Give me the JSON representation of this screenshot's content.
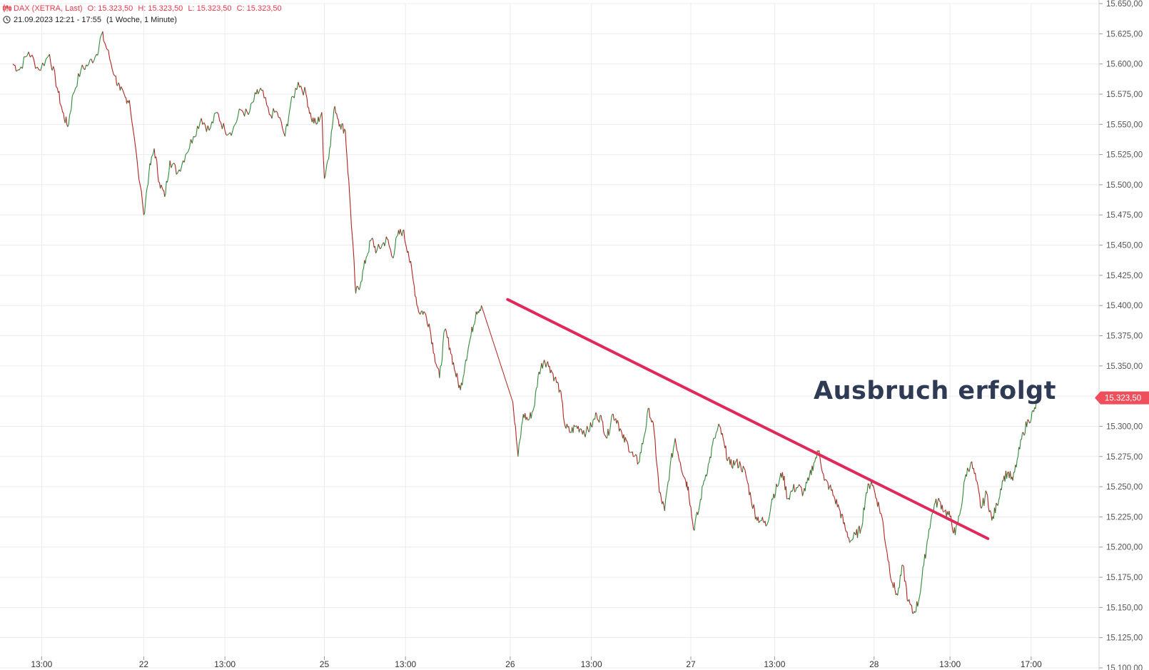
{
  "header": {
    "instrument": "DAX (XETRA, Last)",
    "ohlc": {
      "o": "O: 15.323,50",
      "h": "H: 15.323,50",
      "l": "L: 15.323,50",
      "c": "C: 15.323,50"
    },
    "range": "21.09.2023 12:21 - 17:55",
    "period": "(1 Woche, 1 Minute)",
    "icon": "candlestick-icon",
    "clock_icon": "clock-icon"
  },
  "annotation": {
    "text": "Ausbruch erfolgt"
  },
  "colors": {
    "up": "#2e8b3a",
    "down": "#b22222",
    "trendline": "#e0285a",
    "last_price": "#ef4f5a",
    "grid": "#ececec",
    "annotation": "#2f3b55"
  },
  "chart_data": {
    "type": "line",
    "title": "",
    "ylim": [
      15100,
      15650
    ],
    "yticks": [
      {
        "v": 15650,
        "label": "15.650,00"
      },
      {
        "v": 15625,
        "label": "15.625,00"
      },
      {
        "v": 15600,
        "label": "15.600,00"
      },
      {
        "v": 15575,
        "label": "15.575,00"
      },
      {
        "v": 15550,
        "label": "15.550,00"
      },
      {
        "v": 15525,
        "label": "15.525,00"
      },
      {
        "v": 15500,
        "label": "15.500,00"
      },
      {
        "v": 15475,
        "label": "15.475,00"
      },
      {
        "v": 15450,
        "label": "15.450,00"
      },
      {
        "v": 15425,
        "label": "15.425,00"
      },
      {
        "v": 15400,
        "label": "15.400,00"
      },
      {
        "v": 15375,
        "label": "15.375,00"
      },
      {
        "v": 15350,
        "label": "15.350,00"
      },
      {
        "v": 15325,
        "label": "15.325,00"
      },
      {
        "v": 15300,
        "label": "15.300,00"
      },
      {
        "v": 15275,
        "label": "15.275,00"
      },
      {
        "v": 15250,
        "label": "15.250,00"
      },
      {
        "v": 15225,
        "label": "15.225,00"
      },
      {
        "v": 15200,
        "label": "15.200,00"
      },
      {
        "v": 15175,
        "label": "15.175,00"
      },
      {
        "v": 15150,
        "label": "15.150,00"
      },
      {
        "v": 15125,
        "label": "15.125,00"
      },
      {
        "v": 15100,
        "label": "15.100,00"
      }
    ],
    "xticks": [
      {
        "t": 0.22,
        "label": "13:00"
      },
      {
        "t": 1.0,
        "label": "22"
      },
      {
        "t": 1.62,
        "label": "13:00"
      },
      {
        "t": 2.38,
        "label": "25"
      },
      {
        "t": 3.0,
        "label": "13:00"
      },
      {
        "t": 3.8,
        "label": "26"
      },
      {
        "t": 4.42,
        "label": "13:00"
      },
      {
        "t": 5.18,
        "label": "27"
      },
      {
        "t": 5.82,
        "label": "13:00"
      },
      {
        "t": 6.58,
        "label": "28"
      },
      {
        "t": 7.16,
        "label": "13:00"
      },
      {
        "t": 7.78,
        "label": "17:00"
      }
    ],
    "series": [
      {
        "points": [
          [
            0.0,
            15600
          ],
          [
            0.05,
            15595
          ],
          [
            0.12,
            15610
          ],
          [
            0.2,
            15595
          ],
          [
            0.28,
            15608
          ],
          [
            0.34,
            15580
          ],
          [
            0.38,
            15560
          ],
          [
            0.42,
            15548
          ],
          [
            0.46,
            15575
          ],
          [
            0.52,
            15595
          ],
          [
            0.58,
            15600
          ],
          [
            0.64,
            15608
          ],
          [
            0.68,
            15625
          ],
          [
            0.72,
            15612
          ],
          [
            0.78,
            15590
          ],
          [
            0.82,
            15578
          ],
          [
            0.86,
            15572
          ],
          [
            0.89,
            15570
          ],
          [
            1.0,
            15475
          ],
          [
            1.04,
            15510
          ],
          [
            1.08,
            15530
          ],
          [
            1.12,
            15502
          ],
          [
            1.16,
            15490
          ],
          [
            1.2,
            15520
          ],
          [
            1.26,
            15510
          ],
          [
            1.32,
            15525
          ],
          [
            1.38,
            15540
          ],
          [
            1.44,
            15555
          ],
          [
            1.5,
            15545
          ],
          [
            1.56,
            15560
          ],
          [
            1.62,
            15545
          ],
          [
            1.68,
            15545
          ],
          [
            1.74,
            15562
          ],
          [
            1.8,
            15558
          ],
          [
            1.86,
            15575
          ],
          [
            1.9,
            15578
          ],
          [
            1.96,
            15558
          ],
          [
            2.02,
            15560
          ],
          [
            2.08,
            15540
          ],
          [
            2.12,
            15565
          ],
          [
            2.18,
            15585
          ],
          [
            2.24,
            15575
          ],
          [
            2.28,
            15555
          ],
          [
            2.32,
            15550
          ],
          [
            2.36,
            15560
          ],
          [
            2.38,
            15505
          ],
          [
            2.42,
            15530
          ],
          [
            2.46,
            15565
          ],
          [
            2.5,
            15550
          ],
          [
            2.54,
            15545
          ],
          [
            2.58,
            15480
          ],
          [
            2.62,
            15410
          ],
          [
            2.66,
            15420
          ],
          [
            2.7,
            15440
          ],
          [
            2.74,
            15455
          ],
          [
            2.78,
            15445
          ],
          [
            2.82,
            15450
          ],
          [
            2.86,
            15455
          ],
          [
            2.9,
            15440
          ],
          [
            2.94,
            15458
          ],
          [
            2.98,
            15462
          ],
          [
            3.02,
            15445
          ],
          [
            3.06,
            15420
          ],
          [
            3.1,
            15395
          ],
          [
            3.14,
            15395
          ],
          [
            3.18,
            15385
          ],
          [
            3.22,
            15360
          ],
          [
            3.26,
            15340
          ],
          [
            3.3,
            15380
          ],
          [
            3.34,
            15365
          ],
          [
            3.38,
            15345
          ],
          [
            3.42,
            15330
          ],
          [
            3.46,
            15355
          ],
          [
            3.5,
            15375
          ],
          [
            3.54,
            15395
          ],
          [
            3.58,
            15400
          ],
          [
            3.82,
            15320
          ],
          [
            3.86,
            15275
          ],
          [
            3.9,
            15310
          ],
          [
            3.94,
            15305
          ],
          [
            3.98,
            15315
          ],
          [
            4.02,
            15345
          ],
          [
            4.06,
            15355
          ],
          [
            4.1,
            15350
          ],
          [
            4.14,
            15340
          ],
          [
            4.18,
            15330
          ],
          [
            4.22,
            15300
          ],
          [
            4.26,
            15295
          ],
          [
            4.3,
            15300
          ],
          [
            4.34,
            15298
          ],
          [
            4.38,
            15295
          ],
          [
            4.42,
            15300
          ],
          [
            4.46,
            15310
          ],
          [
            4.5,
            15305
          ],
          [
            4.54,
            15290
          ],
          [
            4.58,
            15310
          ],
          [
            4.62,
            15305
          ],
          [
            4.66,
            15290
          ],
          [
            4.7,
            15285
          ],
          [
            4.74,
            15275
          ],
          [
            4.78,
            15270
          ],
          [
            4.82,
            15290
          ],
          [
            4.86,
            15315
          ],
          [
            4.9,
            15295
          ],
          [
            4.94,
            15245
          ],
          [
            4.98,
            15230
          ],
          [
            5.02,
            15265
          ],
          [
            5.06,
            15290
          ],
          [
            5.1,
            15270
          ],
          [
            5.14,
            15255
          ],
          [
            5.16,
            15250
          ],
          [
            5.2,
            15215
          ],
          [
            5.24,
            15230
          ],
          [
            5.28,
            15255
          ],
          [
            5.32,
            15270
          ],
          [
            5.36,
            15290
          ],
          [
            5.4,
            15300
          ],
          [
            5.44,
            15282
          ],
          [
            5.48,
            15268
          ],
          [
            5.52,
            15270
          ],
          [
            5.56,
            15268
          ],
          [
            5.6,
            15260
          ],
          [
            5.64,
            15240
          ],
          [
            5.68,
            15225
          ],
          [
            5.72,
            15222
          ],
          [
            5.76,
            15218
          ],
          [
            5.8,
            15240
          ],
          [
            5.84,
            15250
          ],
          [
            5.88,
            15262
          ],
          [
            5.92,
            15240
          ],
          [
            5.96,
            15248
          ],
          [
            6.0,
            15250
          ],
          [
            6.04,
            15245
          ],
          [
            6.08,
            15255
          ],
          [
            6.12,
            15270
          ],
          [
            6.16,
            15280
          ],
          [
            6.2,
            15255
          ],
          [
            6.24,
            15250
          ],
          [
            6.28,
            15240
          ],
          [
            6.32,
            15230
          ],
          [
            6.36,
            15215
          ],
          [
            6.4,
            15205
          ],
          [
            6.44,
            15210
          ],
          [
            6.48,
            15215
          ],
          [
            6.52,
            15245
          ],
          [
            6.56,
            15255
          ],
          [
            6.6,
            15240
          ],
          [
            6.64,
            15225
          ],
          [
            6.68,
            15195
          ],
          [
            6.72,
            15170
          ],
          [
            6.76,
            15160
          ],
          [
            6.8,
            15185
          ],
          [
            6.84,
            15155
          ],
          [
            6.88,
            15145
          ],
          [
            6.92,
            15155
          ],
          [
            6.96,
            15185
          ],
          [
            7.0,
            15215
          ],
          [
            7.04,
            15235
          ],
          [
            7.08,
            15238
          ],
          [
            7.12,
            15230
          ],
          [
            7.16,
            15225
          ],
          [
            7.2,
            15210
          ],
          [
            7.24,
            15230
          ],
          [
            7.28,
            15260
          ],
          [
            7.32,
            15270
          ],
          [
            7.36,
            15255
          ],
          [
            7.4,
            15232
          ],
          [
            7.44,
            15245
          ],
          [
            7.48,
            15222
          ],
          [
            7.52,
            15235
          ],
          [
            7.56,
            15255
          ],
          [
            7.6,
            15262
          ],
          [
            7.64,
            15255
          ],
          [
            7.68,
            15275
          ],
          [
            7.72,
            15295
          ],
          [
            7.76,
            15305
          ],
          [
            7.8,
            15312
          ],
          [
            7.84,
            15323.5
          ]
        ]
      }
    ],
    "trendline": [
      [
        3.78,
        15405
      ],
      [
        7.45,
        15207
      ]
    ],
    "last_price": {
      "v": 15323.5,
      "label": "15.323,50"
    }
  }
}
